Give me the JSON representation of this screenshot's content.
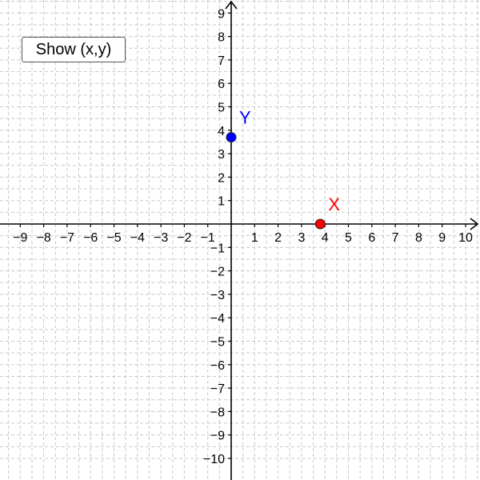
{
  "toolbar": {
    "show_button_label": "Show (x,y)"
  },
  "axes": {
    "x_ticks": [
      "−9",
      "−8",
      "−7",
      "−6",
      "−5",
      "−4",
      "−3",
      "−2",
      "−1",
      "1",
      "2",
      "3",
      "4",
      "5",
      "6",
      "7",
      "8",
      "9",
      "10"
    ],
    "y_ticks": [
      "9",
      "8",
      "7",
      "6",
      "5",
      "4",
      "3",
      "2",
      "1",
      "−1",
      "−2",
      "−3",
      "−4",
      "−5",
      "−6",
      "−7",
      "−8",
      "−9",
      "−10"
    ],
    "x_tick_values": [
      -9,
      -8,
      -7,
      -6,
      -5,
      -4,
      -3,
      -2,
      -1,
      1,
      2,
      3,
      4,
      5,
      6,
      7,
      8,
      9,
      10
    ],
    "y_tick_values": [
      9,
      8,
      7,
      6,
      5,
      4,
      3,
      2,
      1,
      -1,
      -2,
      -3,
      -4,
      -5,
      -6,
      -7,
      -8,
      -9,
      -10
    ]
  },
  "points": [
    {
      "label": "X",
      "x": 3.8,
      "y": 0,
      "color": "#ff0000"
    },
    {
      "label": "Y",
      "x": 0,
      "y": 3.7,
      "color": "#0000ff"
    }
  ],
  "colors": {
    "grid": "#c8c8c8",
    "axis": "#000000"
  }
}
